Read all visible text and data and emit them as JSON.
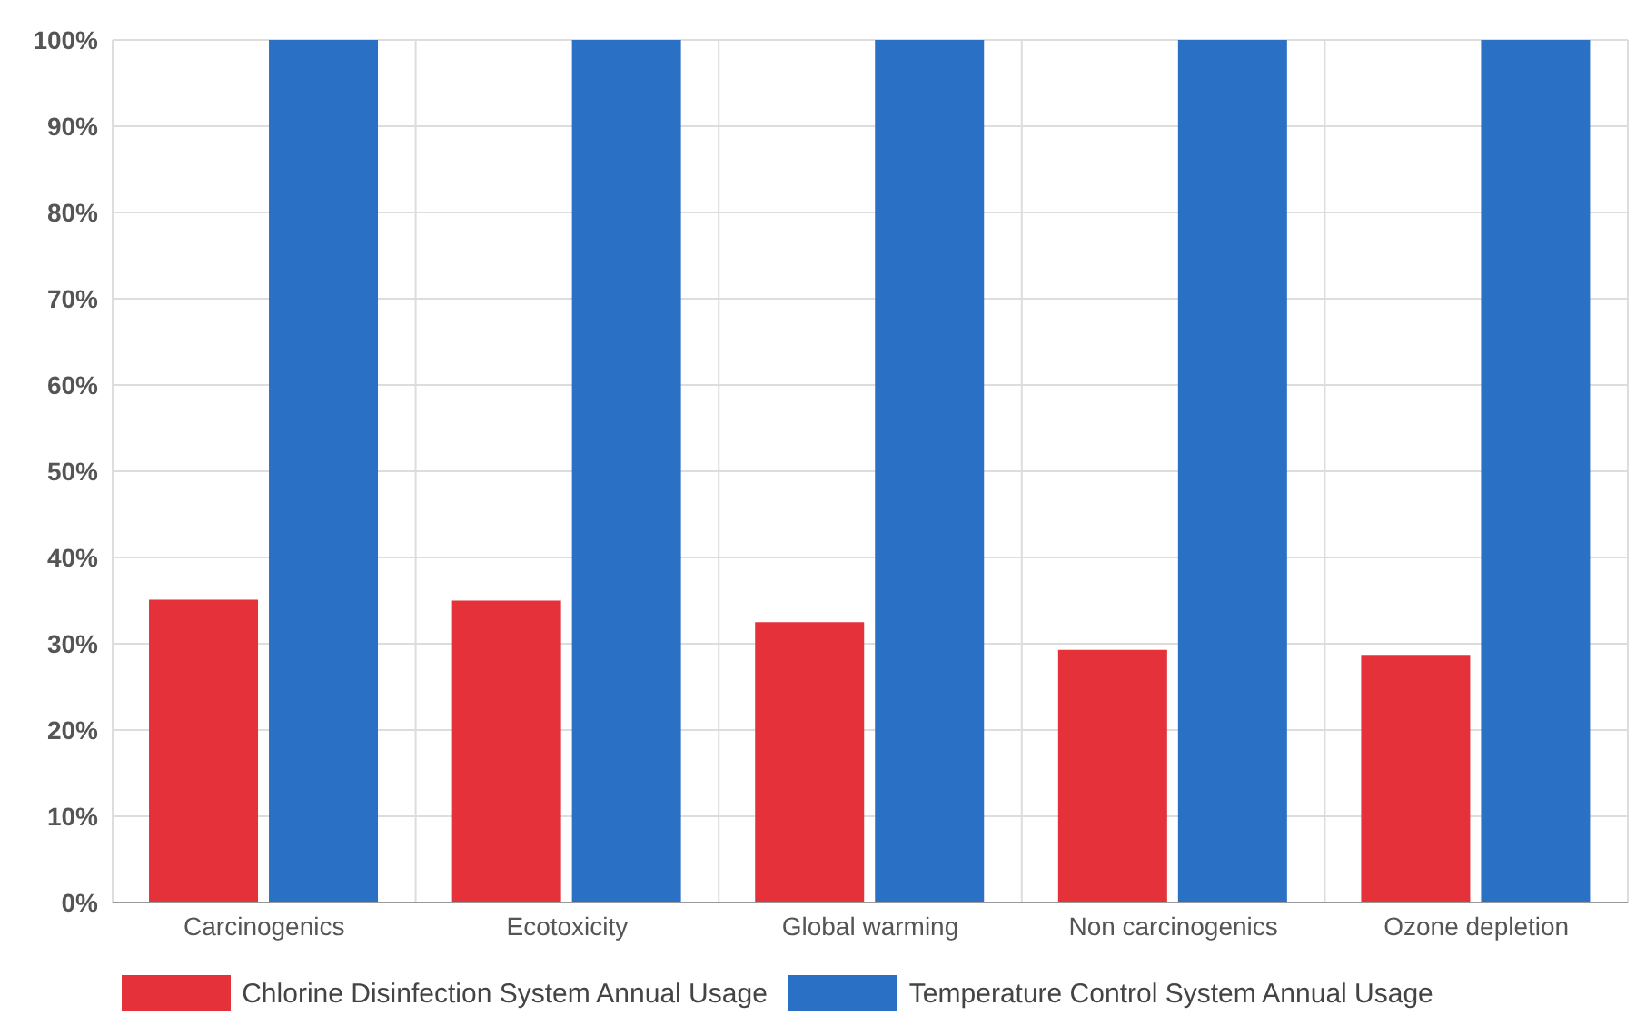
{
  "chart_data": {
    "type": "bar",
    "categories": [
      "Carcinogenics",
      "Ecotoxicity",
      "Global warming",
      "Non carcinogenics",
      "Ozone depletion"
    ],
    "series": [
      {
        "name": "Chlorine Disinfection System Annual Usage",
        "color": "#e4313a",
        "values": [
          35.1,
          35.0,
          32.5,
          29.3,
          28.7
        ]
      },
      {
        "name": "Temperature Control System Annual Usage",
        "color": "#2a70c4",
        "values": [
          100,
          100,
          100,
          100,
          100
        ]
      }
    ],
    "ylim": [
      0,
      100
    ],
    "yticks": [
      {
        "value": 0,
        "label": "0%"
      },
      {
        "value": 10,
        "label": "10%"
      },
      {
        "value": 20,
        "label": "20%"
      },
      {
        "value": 30,
        "label": "30%"
      },
      {
        "value": 40,
        "label": "40%"
      },
      {
        "value": 50,
        "label": "50%"
      },
      {
        "value": 60,
        "label": "60%"
      },
      {
        "value": 70,
        "label": "70%"
      },
      {
        "value": 80,
        "label": "80%"
      },
      {
        "value": 90,
        "label": "90%"
      },
      {
        "value": 100,
        "label": "100%"
      }
    ],
    "grid": true,
    "legend": "bottom"
  }
}
